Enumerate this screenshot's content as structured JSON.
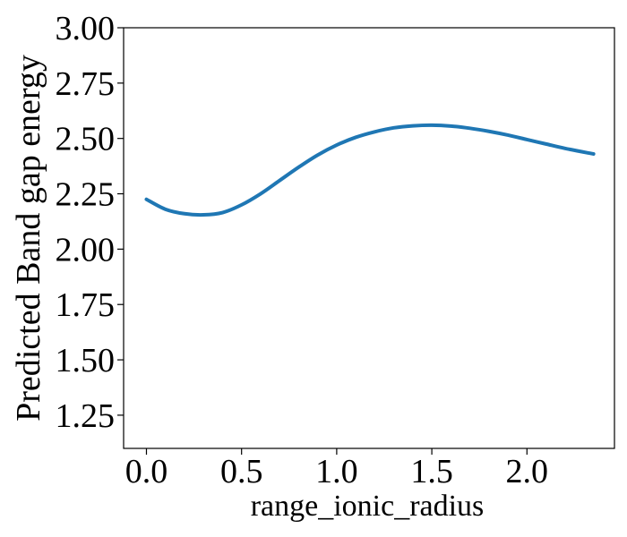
{
  "chart_data": {
    "type": "line",
    "title": "",
    "xlabel": "range_ionic_radius",
    "ylabel": "Predicted Band gap energy",
    "xlim": [
      -0.12,
      2.46
    ],
    "ylim": [
      1.1,
      3.0
    ],
    "x_ticks": [
      0.0,
      0.5,
      1.0,
      1.5,
      2.0
    ],
    "x_tick_labels": [
      "0.0",
      "0.5",
      "1.0",
      "1.5",
      "2.0"
    ],
    "y_ticks": [
      1.25,
      1.5,
      1.75,
      2.0,
      2.25,
      2.5,
      2.75,
      3.0
    ],
    "y_tick_labels": [
      "1.25",
      "1.50",
      "1.75",
      "2.00",
      "2.25",
      "2.50",
      "2.75",
      "3.00"
    ],
    "grid": false,
    "legend": "none",
    "series": [
      {
        "color": "#1f77b4",
        "x": [
          0.0,
          0.1,
          0.2,
          0.3,
          0.4,
          0.5,
          0.6,
          0.7,
          0.8,
          0.9,
          1.0,
          1.1,
          1.2,
          1.3,
          1.4,
          1.5,
          1.6,
          1.7,
          1.8,
          1.9,
          2.0,
          2.1,
          2.2,
          2.35
        ],
        "y": [
          2.225,
          2.18,
          2.16,
          2.155,
          2.165,
          2.2,
          2.25,
          2.31,
          2.37,
          2.425,
          2.47,
          2.505,
          2.53,
          2.548,
          2.557,
          2.56,
          2.556,
          2.546,
          2.532,
          2.515,
          2.495,
          2.475,
          2.455,
          2.43
        ]
      }
    ]
  }
}
